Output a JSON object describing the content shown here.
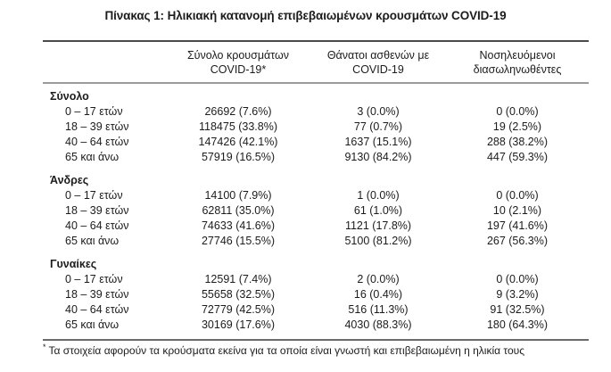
{
  "title": "Πίνακας 1: Ηλικιακή κατανομή επιβεβαιωμένων κρουσμάτων COVID-19",
  "colors": {
    "text": "#1c1c1c",
    "rule_top": "#4b4b4b",
    "rule_header": "#9b9b9b",
    "rule_bottom": "#6b6b6b"
  },
  "table": {
    "columns": {
      "cases_line1": "Σύνολο κρουσμάτων",
      "cases_line2": "COVID-19*",
      "deaths_line1": "Θάνατοι ασθενών με",
      "deaths_line2": "COVID-19",
      "intubated_line1": "Νοσηλευόμενοι",
      "intubated_line2": "διασωληνωθέντες"
    },
    "sections": [
      {
        "label": "Σύνολο",
        "rows": [
          {
            "label": "0 – 17 ετών",
            "cases": "26692 (7.6%)",
            "deaths": "3 (0.0%)",
            "intubated": "0 (0.0%)"
          },
          {
            "label": "18 – 39 ετών",
            "cases": "118475 (33.8%)",
            "deaths": "77 (0.7%)",
            "intubated": "19 (2.5%)"
          },
          {
            "label": "40 – 64 ετών",
            "cases": "147426 (42.1%)",
            "deaths": "1637 (15.1%)",
            "intubated": "288 (38.2%)"
          },
          {
            "label": "65 και άνω",
            "cases": "57919 (16.5%)",
            "deaths": "9130 (84.2%)",
            "intubated": "447 (59.3%)"
          }
        ]
      },
      {
        "label": "Άνδρες",
        "rows": [
          {
            "label": "0 – 17 ετών",
            "cases": "14100 (7.9%)",
            "deaths": "1 (0.0%)",
            "intubated": "0 (0.0%)"
          },
          {
            "label": "18 – 39 ετών",
            "cases": "62811 (35.0%)",
            "deaths": "61 (1.0%)",
            "intubated": "10 (2.1%)"
          },
          {
            "label": "40 – 64 ετών",
            "cases": "74633 (41.6%)",
            "deaths": "1121 (17.8%)",
            "intubated": "197 (41.6%)"
          },
          {
            "label": "65 και άνω",
            "cases": "27746 (15.5%)",
            "deaths": "5100 (81.2%)",
            "intubated": "267 (56.3%)"
          }
        ]
      },
      {
        "label": "Γυναίκες",
        "rows": [
          {
            "label": "0 – 17 ετών",
            "cases": "12591 (7.4%)",
            "deaths": "2 (0.0%)",
            "intubated": "0 (0.0%)"
          },
          {
            "label": "18 – 39 ετών",
            "cases": "55658 (32.5%)",
            "deaths": "16 (0.4%)",
            "intubated": "9 (3.2%)"
          },
          {
            "label": "40 – 64 ετών",
            "cases": "72779 (42.5%)",
            "deaths": "516 (11.3%)",
            "intubated": "91 (32.5%)"
          },
          {
            "label": "65 και άνω",
            "cases": "30169 (17.6%)",
            "deaths": "4030 (88.3%)",
            "intubated": "180 (64.3%)"
          }
        ]
      }
    ]
  },
  "footnote": {
    "marker": "*",
    "text": "Τα στοιχεία αφορούν τα κρούσματα εκείνα για τα οποία είναι γνωστή και επιβεβαιωμένη η ηλικία τους"
  }
}
